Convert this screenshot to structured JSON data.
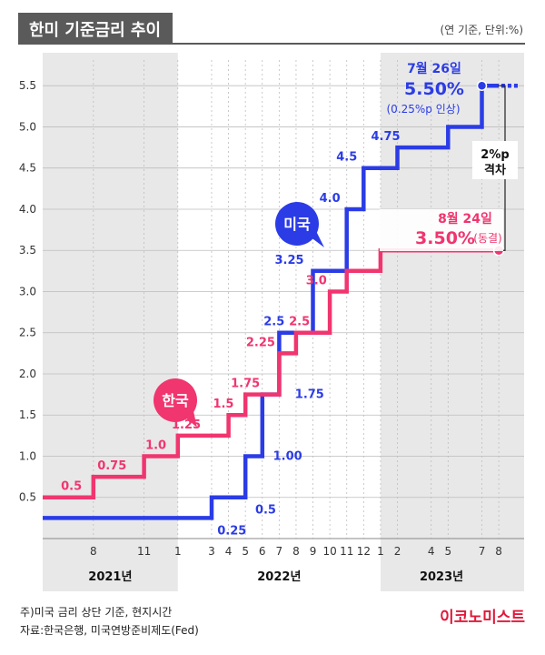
{
  "header": {
    "title": "한미 기준금리 추이",
    "unit": "(연 기준, 단위:%)"
  },
  "colors": {
    "us": "#2b3ce6",
    "korea": "#f0356f",
    "grid": "#bdbdbd",
    "band": "#e8e8e8",
    "axis_text": "#333333",
    "year_text": "#111111"
  },
  "chart_data": {
    "type": "line",
    "title": "한미 기준금리 추이",
    "ylim": [
      0,
      5.9
    ],
    "y_ticks": [
      "0.5",
      "1.0",
      "1.5",
      "2.0",
      "2.5",
      "3.0",
      "3.5",
      "4.0",
      "4.5",
      "5.0",
      "5.5"
    ],
    "x_ticks": [
      {
        "label": "8",
        "month": 8
      },
      {
        "label": "11",
        "month": 11
      },
      {
        "label": "1",
        "month": 13
      },
      {
        "label": "3",
        "month": 15
      },
      {
        "label": "4",
        "month": 16
      },
      {
        "label": "5",
        "month": 17
      },
      {
        "label": "6",
        "month": 18
      },
      {
        "label": "7",
        "month": 19
      },
      {
        "label": "8",
        "month": 20
      },
      {
        "label": "9",
        "month": 21
      },
      {
        "label": "10",
        "month": 22
      },
      {
        "label": "11",
        "month": 23
      },
      {
        "label": "12",
        "month": 24
      },
      {
        "label": "1",
        "month": 25
      },
      {
        "label": "2",
        "month": 26
      },
      {
        "label": "4",
        "month": 28
      },
      {
        "label": "5",
        "month": 29
      },
      {
        "label": "7",
        "month": 31
      },
      {
        "label": "8",
        "month": 32
      }
    ],
    "years": [
      {
        "label": "2021년",
        "from": 5,
        "to": 13,
        "shaded": true
      },
      {
        "label": "2022년",
        "from": 13,
        "to": 25,
        "shaded": false
      },
      {
        "label": "2023년",
        "from": 25,
        "to": 32,
        "shaded": true
      }
    ],
    "series": [
      {
        "key": "us",
        "name": "미국",
        "step_points": [
          [
            5,
            0.25
          ],
          [
            15,
            0.25
          ],
          [
            15,
            0.5
          ],
          [
            17,
            0.5
          ],
          [
            17,
            1.0
          ],
          [
            18,
            1.0
          ],
          [
            18,
            1.75
          ],
          [
            19,
            1.75
          ],
          [
            19,
            2.5
          ],
          [
            21,
            2.5
          ],
          [
            21,
            3.25
          ],
          [
            23,
            3.25
          ],
          [
            23,
            4.0
          ],
          [
            24,
            4.0
          ],
          [
            24,
            4.5
          ],
          [
            26,
            4.5
          ],
          [
            26,
            4.75
          ],
          [
            29,
            4.75
          ],
          [
            29,
            5.0
          ],
          [
            31,
            5.0
          ],
          [
            31,
            5.5
          ],
          [
            32,
            5.5
          ]
        ],
        "labels": [
          {
            "text": "0.25",
            "x": 16.2,
            "y": 0.25,
            "side": "below"
          },
          {
            "text": "0.5",
            "x": 18.2,
            "y": 0.5,
            "side": "below"
          },
          {
            "text": "1.00",
            "x": 19.5,
            "y": 1.0,
            "side": "right"
          },
          {
            "text": "1.75",
            "x": 20.8,
            "y": 1.75,
            "side": "right"
          },
          {
            "text": "2.5",
            "x": 18.7,
            "y": 2.5,
            "side": "above"
          },
          {
            "text": "3.25",
            "x": 19.6,
            "y": 3.25,
            "side": "above"
          },
          {
            "text": "4.0",
            "x": 22.0,
            "y": 4.0,
            "side": "above"
          },
          {
            "text": "4.5",
            "x": 23.0,
            "y": 4.5,
            "side": "above"
          },
          {
            "text": "4.75",
            "x": 25.3,
            "y": 4.75,
            "side": "above"
          }
        ]
      },
      {
        "key": "korea",
        "name": "한국",
        "step_points": [
          [
            5,
            0.5
          ],
          [
            8,
            0.5
          ],
          [
            8,
            0.75
          ],
          [
            11,
            0.75
          ],
          [
            11,
            1.0
          ],
          [
            13,
            1.0
          ],
          [
            13,
            1.25
          ],
          [
            16,
            1.25
          ],
          [
            16,
            1.5
          ],
          [
            17,
            1.5
          ],
          [
            17,
            1.75
          ],
          [
            19,
            1.75
          ],
          [
            19,
            2.25
          ],
          [
            20,
            2.25
          ],
          [
            20,
            2.5
          ],
          [
            22,
            2.5
          ],
          [
            22,
            3.0
          ],
          [
            23,
            3.0
          ],
          [
            23,
            3.25
          ],
          [
            25,
            3.25
          ],
          [
            25,
            3.5
          ],
          [
            32,
            3.5
          ]
        ],
        "labels": [
          {
            "text": "0.5",
            "x": 6.7,
            "y": 0.5,
            "side": "above"
          },
          {
            "text": "0.75",
            "x": 9.1,
            "y": 0.75,
            "side": "above"
          },
          {
            "text": "1.0",
            "x": 11.7,
            "y": 1.0,
            "side": "above"
          },
          {
            "text": "1.25",
            "x": 13.5,
            "y": 1.25,
            "side": "above"
          },
          {
            "text": "1.5",
            "x": 15.7,
            "y": 1.5,
            "side": "above"
          },
          {
            "text": "1.75",
            "x": 17.0,
            "y": 1.75,
            "side": "above"
          },
          {
            "text": "2.25",
            "x": 17.9,
            "y": 2.25,
            "side": "above"
          },
          {
            "text": "2.5",
            "x": 20.2,
            "y": 2.5,
            "side": "above"
          },
          {
            "text": "3.0",
            "x": 21.2,
            "y": 3.0,
            "side": "above"
          }
        ]
      }
    ],
    "callouts": {
      "us_date": "7월 26일",
      "us_value": "5.50%",
      "us_note": "(0.25%p 인상)",
      "korea_date": "8월 24일",
      "korea_value": "3.50%",
      "korea_note": "(동결)",
      "gap_line1": "2%p",
      "gap_line2": "격차"
    },
    "bubbles": {
      "us": "미국",
      "korea": "한국"
    }
  },
  "footer": {
    "note1": "주)미국 금리 상단 기준, 현지시간",
    "note2": "자료:한국은행, 미국연방준비제도(Fed)",
    "brand": "이코노미스트"
  }
}
